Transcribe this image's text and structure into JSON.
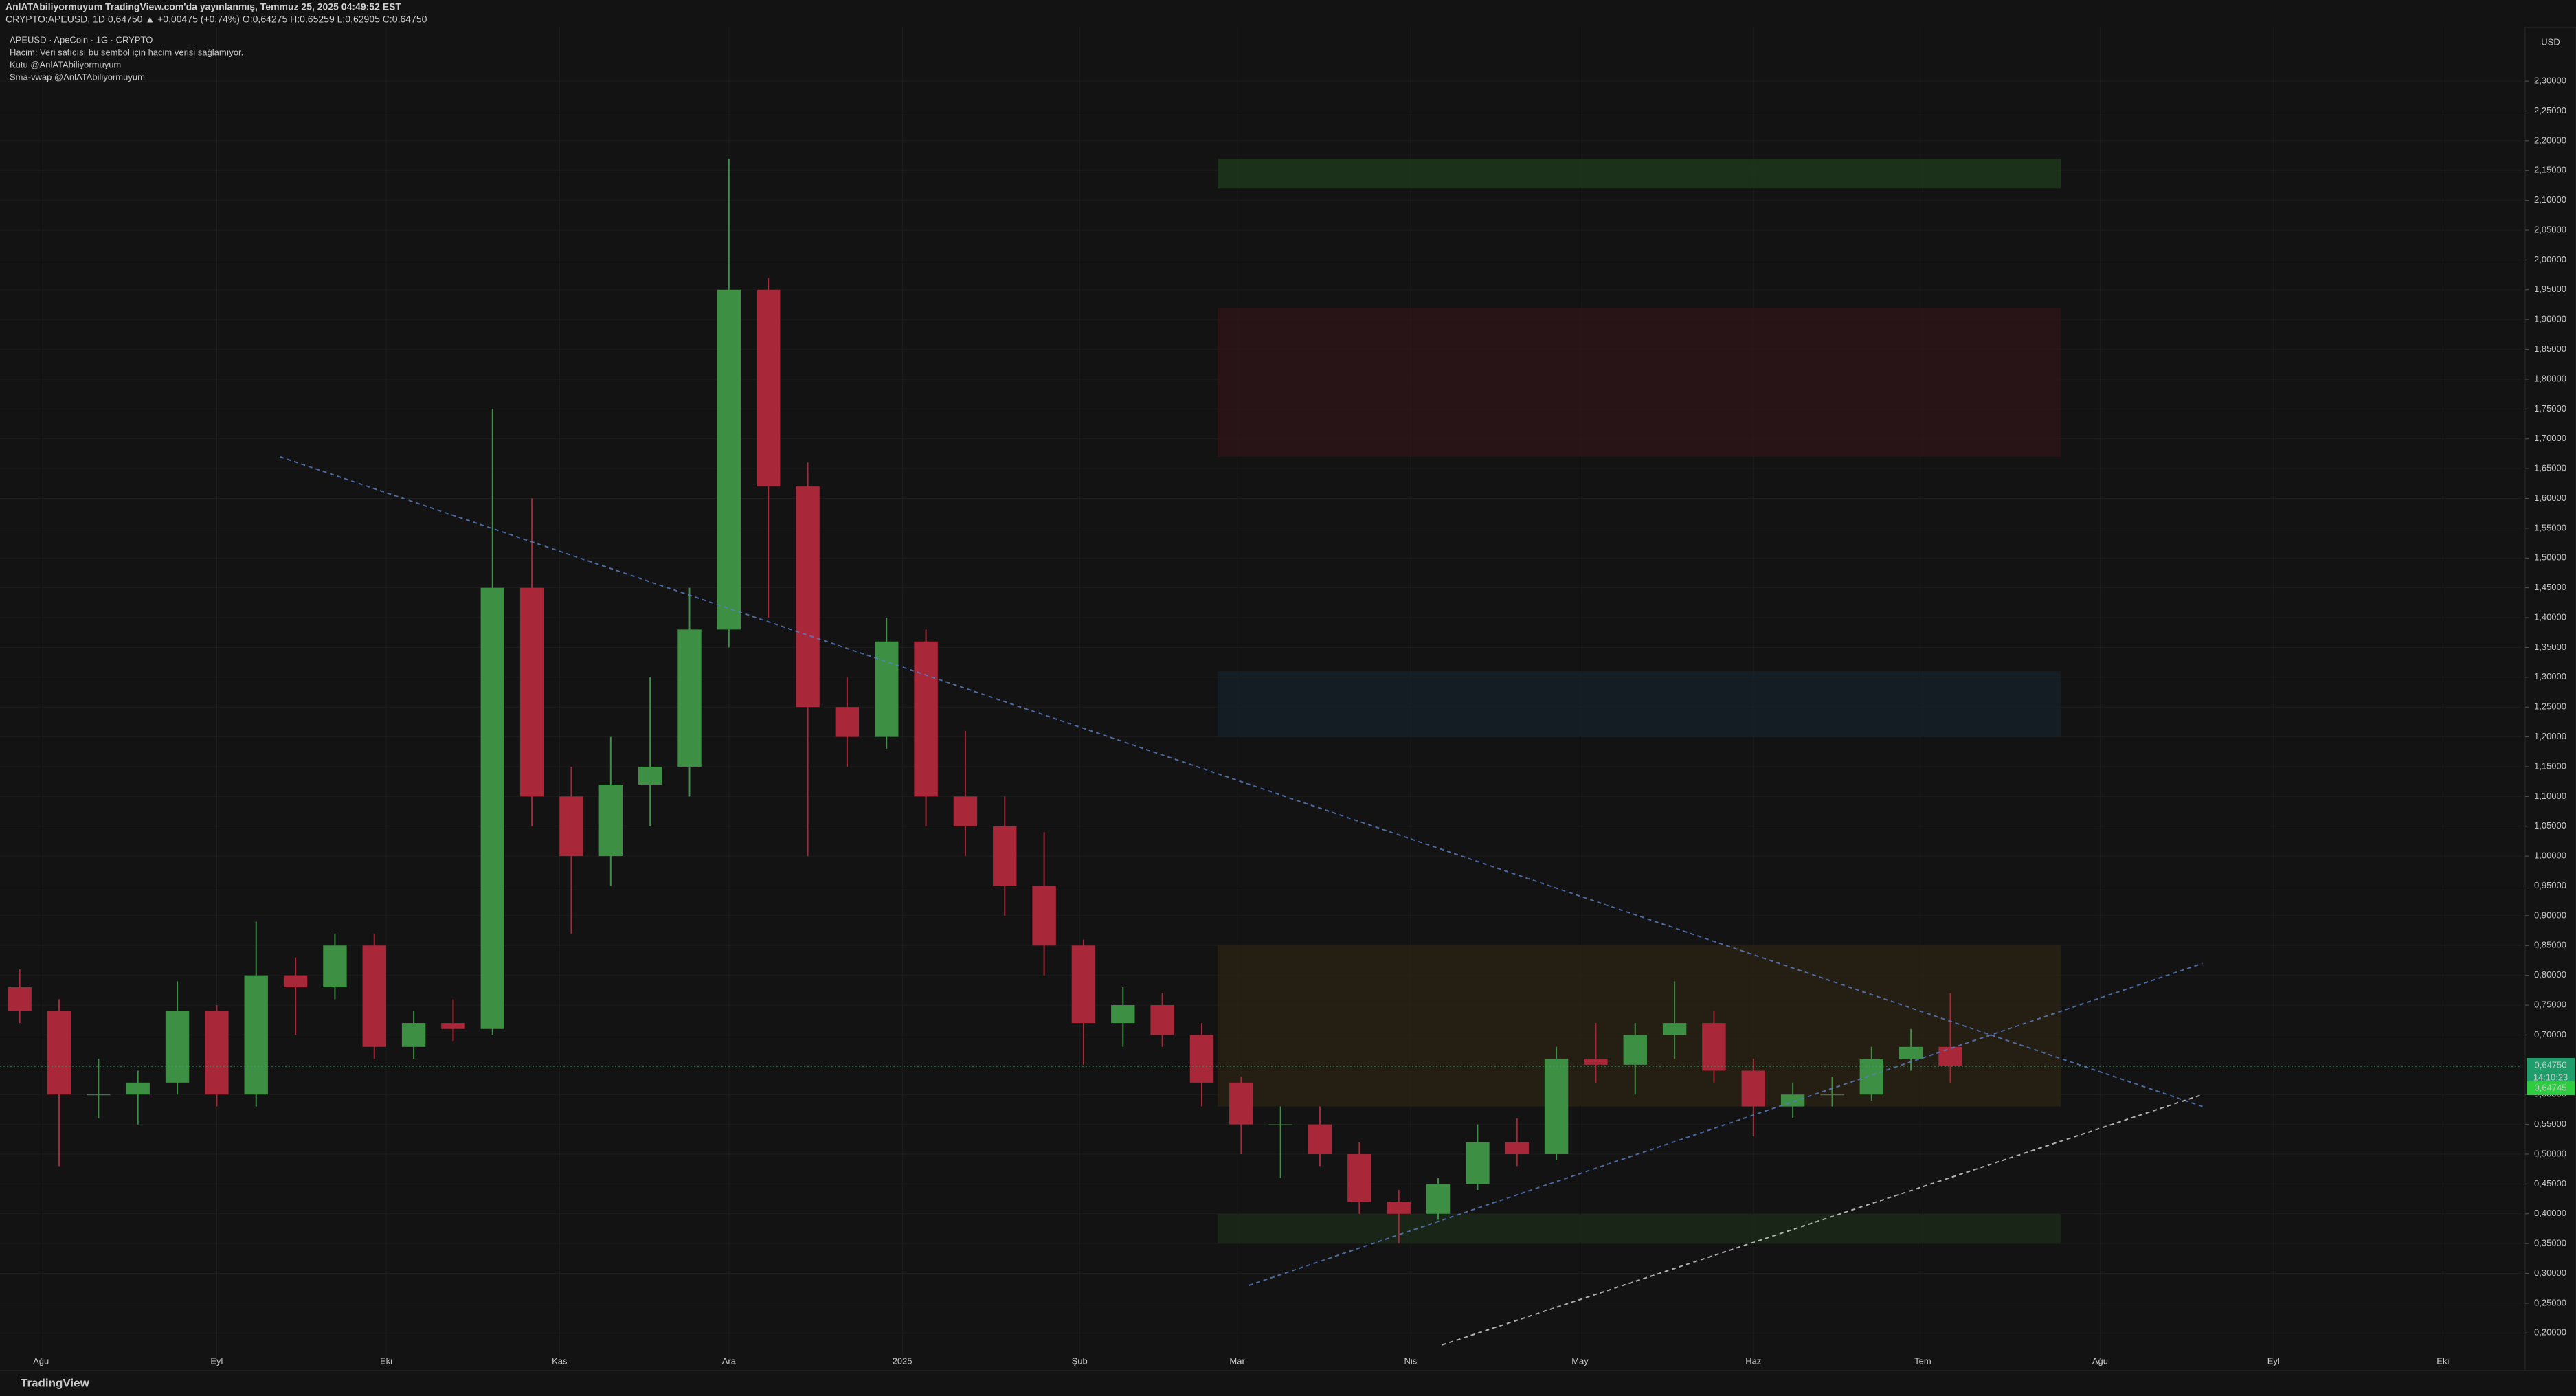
{
  "header": {
    "publisher": "AnlATAbiliyormuyum TradingView.com'da yayınlanmış, Temmuz 25, 2025 04:49:52 EST",
    "symbol_line": "CRYPTO:APEUSD, 1D 0,64750 ▲ +0,00475 (+0.74%) O:0,64275 H:0,65259 L:0,62905 C:0,64750"
  },
  "footer": "TradingView",
  "chart_data": {
    "type": "candlestick",
    "title": "APEUSD · ApeCoin · 1G · CRYPTO",
    "legend_lines": [
      "Hacim: Veri satıcısı bu sembol için hacim verisi sağlamıyor.",
      "Kutu @AnlATAbiliyormuyum",
      "Sma-vwap @AnlATAbiliyormuyum"
    ],
    "currency": "USD",
    "up_color": "#3d8f43",
    "down_color": "#a8283a",
    "x": [
      0.5,
      1.5,
      2.5,
      3.5,
      4.5,
      5.5,
      6.5,
      7.5,
      8.5,
      9.5,
      10.5,
      11.5,
      12.5,
      13.5,
      14.5,
      15.5,
      16.5,
      17.5,
      18.5,
      19.5,
      20.5,
      21.5,
      22.5,
      23.5,
      24.5,
      25.5,
      26.5,
      27.5,
      28.5,
      29.5,
      30.5,
      31.5,
      32.5,
      33.5,
      34.5,
      35.5,
      36.5,
      37.5,
      38.5,
      39.5,
      40.5,
      41.5,
      42.5,
      43.5,
      44.5,
      45.5,
      46.5,
      47.5,
      48.5,
      49.5
    ],
    "open": [
      0.78,
      0.74,
      0.6,
      0.6,
      0.62,
      0.74,
      0.6,
      0.8,
      0.78,
      0.85,
      0.68,
      0.72,
      0.71,
      1.45,
      1.1,
      1.0,
      1.12,
      1.15,
      1.38,
      1.95,
      1.62,
      1.25,
      1.2,
      1.36,
      1.1,
      1.05,
      0.95,
      0.85,
      0.72,
      0.75,
      0.7,
      0.62,
      0.55,
      0.55,
      0.5,
      0.42,
      0.4,
      0.45,
      0.52,
      0.5,
      0.66,
      0.65,
      0.7,
      0.72,
      0.64,
      0.58,
      0.6,
      0.6,
      0.66,
      0.68
    ],
    "high": [
      0.81,
      0.76,
      0.66,
      0.64,
      0.79,
      0.75,
      0.89,
      0.83,
      0.87,
      0.87,
      0.74,
      0.76,
      1.75,
      1.6,
      1.15,
      1.2,
      1.3,
      1.45,
      2.17,
      1.97,
      1.66,
      1.3,
      1.4,
      1.38,
      1.21,
      1.1,
      1.04,
      0.86,
      0.78,
      0.77,
      0.72,
      0.63,
      0.58,
      0.58,
      0.52,
      0.44,
      0.46,
      0.55,
      0.56,
      0.68,
      0.72,
      0.72,
      0.79,
      0.74,
      0.66,
      0.62,
      0.63,
      0.68,
      0.71,
      0.77
    ],
    "low": [
      0.72,
      0.48,
      0.56,
      0.55,
      0.6,
      0.58,
      0.58,
      0.7,
      0.76,
      0.66,
      0.66,
      0.69,
      0.7,
      1.05,
      0.87,
      0.95,
      1.05,
      1.1,
      1.35,
      1.4,
      1.0,
      1.15,
      1.18,
      1.05,
      1.0,
      0.9,
      0.8,
      0.65,
      0.68,
      0.68,
      0.58,
      0.5,
      0.46,
      0.48,
      0.4,
      0.35,
      0.39,
      0.44,
      0.48,
      0.49,
      0.62,
      0.6,
      0.66,
      0.62,
      0.53,
      0.56,
      0.58,
      0.59,
      0.64,
      0.62
    ],
    "close": [
      0.74,
      0.6,
      0.6,
      0.62,
      0.74,
      0.6,
      0.8,
      0.78,
      0.85,
      0.68,
      0.72,
      0.71,
      1.45,
      1.1,
      1.0,
      1.12,
      1.15,
      1.38,
      1.95,
      1.62,
      1.25,
      1.2,
      1.36,
      1.1,
      1.05,
      0.95,
      0.85,
      0.72,
      0.75,
      0.7,
      0.62,
      0.55,
      0.55,
      0.5,
      0.42,
      0.4,
      0.45,
      0.52,
      0.5,
      0.66,
      0.65,
      0.7,
      0.72,
      0.64,
      0.58,
      0.6,
      0.6,
      0.66,
      0.68,
      0.6475
    ],
    "xlim": [
      0,
      64
    ],
    "xticks": [
      {
        "value": 1.04,
        "label": "Ağu"
      },
      {
        "value": 5.5,
        "label": "Eyl"
      },
      {
        "value": 9.8,
        "label": "Eki"
      },
      {
        "value": 14.2,
        "label": "Kas"
      },
      {
        "value": 18.5,
        "label": "Ara"
      },
      {
        "value": 22.9,
        "label": "2025"
      },
      {
        "value": 27.4,
        "label": "Şub"
      },
      {
        "value": 31.4,
        "label": "Mar"
      },
      {
        "value": 35.8,
        "label": "Nis"
      },
      {
        "value": 40.1,
        "label": "May"
      },
      {
        "value": 44.5,
        "label": "Haz"
      },
      {
        "value": 48.8,
        "label": "Tem"
      },
      {
        "value": 53.3,
        "label": "Ağu"
      },
      {
        "value": 57.7,
        "label": "Eyl"
      },
      {
        "value": 62,
        "label": "Eki"
      }
    ],
    "ylim": [
      0.16,
      2.39
    ],
    "yticks": [
      {
        "value": 0.2,
        "label": "0,20000"
      },
      {
        "value": 0.25,
        "label": "0,25000"
      },
      {
        "value": 0.3,
        "label": "0,30000"
      },
      {
        "value": 0.35,
        "label": "0,35000"
      },
      {
        "value": 0.4,
        "label": "0,40000"
      },
      {
        "value": 0.45,
        "label": "0,45000"
      },
      {
        "value": 0.5,
        "label": "0,50000"
      },
      {
        "value": 0.55,
        "label": "0,55000"
      },
      {
        "value": 0.6,
        "label": "0,60000"
      },
      {
        "value": 0.7,
        "label": "0,70000"
      },
      {
        "value": 0.75,
        "label": "0,75000"
      },
      {
        "value": 0.8,
        "label": "0,80000"
      },
      {
        "value": 0.85,
        "label": "0,85000"
      },
      {
        "value": 0.9,
        "label": "0,90000"
      },
      {
        "value": 0.95,
        "label": "0,95000"
      },
      {
        "value": 1.0,
        "label": "1,00000"
      },
      {
        "value": 1.05,
        "label": "1,05000"
      },
      {
        "value": 1.1,
        "label": "1,10000"
      },
      {
        "value": 1.15,
        "label": "1,15000"
      },
      {
        "value": 1.2,
        "label": "1,20000"
      },
      {
        "value": 1.25,
        "label": "1,25000"
      },
      {
        "value": 1.3,
        "label": "1,30000"
      },
      {
        "value": 1.35,
        "label": "1,35000"
      },
      {
        "value": 1.4,
        "label": "1,40000"
      },
      {
        "value": 1.45,
        "label": "1,45000"
      },
      {
        "value": 1.5,
        "label": "1,50000"
      },
      {
        "value": 1.55,
        "label": "1,55000"
      },
      {
        "value": 1.6,
        "label": "1,60000"
      },
      {
        "value": 1.65,
        "label": "1,65000"
      },
      {
        "value": 1.7,
        "label": "1,70000"
      },
      {
        "value": 1.75,
        "label": "1,75000"
      },
      {
        "value": 1.8,
        "label": "1,80000"
      },
      {
        "value": 1.85,
        "label": "1,85000"
      },
      {
        "value": 1.9,
        "label": "1,90000"
      },
      {
        "value": 1.95,
        "label": "1,95000"
      },
      {
        "value": 2.0,
        "label": "2,00000"
      },
      {
        "value": 2.05,
        "label": "2,05000"
      },
      {
        "value": 2.1,
        "label": "2,10000"
      },
      {
        "value": 2.15,
        "label": "2,15000"
      },
      {
        "value": 2.2,
        "label": "2,20000"
      },
      {
        "value": 2.25,
        "label": "2,25000"
      },
      {
        "value": 2.3,
        "label": "2,30000"
      }
    ],
    "grid": true,
    "zones": [
      {
        "xlim": [
          30.9,
          52.3
        ],
        "ylim": [
          2.12,
          2.17
        ],
        "color": "#1f3a1c"
      },
      {
        "xlim": [
          30.9,
          52.3
        ],
        "ylim": [
          1.67,
          1.92
        ],
        "color": "#2e1518"
      },
      {
        "xlim": [
          30.9,
          52.3
        ],
        "ylim": [
          1.2,
          1.31
        ],
        "color": "#172029"
      },
      {
        "xlim": [
          30.9,
          52.3
        ],
        "ylim": [
          0.58,
          0.85
        ],
        "color": "#2a2214"
      },
      {
        "xlim": [
          30.9,
          52.3
        ],
        "ylim": [
          0.35,
          0.4
        ],
        "color": "#1c2c19"
      }
    ],
    "trendlines": [
      {
        "x": [
          7.1,
          55.9
        ],
        "y": [
          1.67,
          0.58
        ],
        "color": "#5b7fc7"
      },
      {
        "x": [
          31.7,
          55.9
        ],
        "y": [
          0.28,
          0.82
        ],
        "color": "#5b7fc7"
      },
      {
        "x": [
          36.6,
          55.9
        ],
        "y": [
          0.18,
          0.6
        ],
        "color": "#d8d8d8"
      }
    ],
    "last_price": {
      "value": 0.6475,
      "label": "0,64750"
    },
    "countdown": "14:10:23",
    "sma_price": {
      "value": 0.6474,
      "label": "0,64745"
    }
  }
}
